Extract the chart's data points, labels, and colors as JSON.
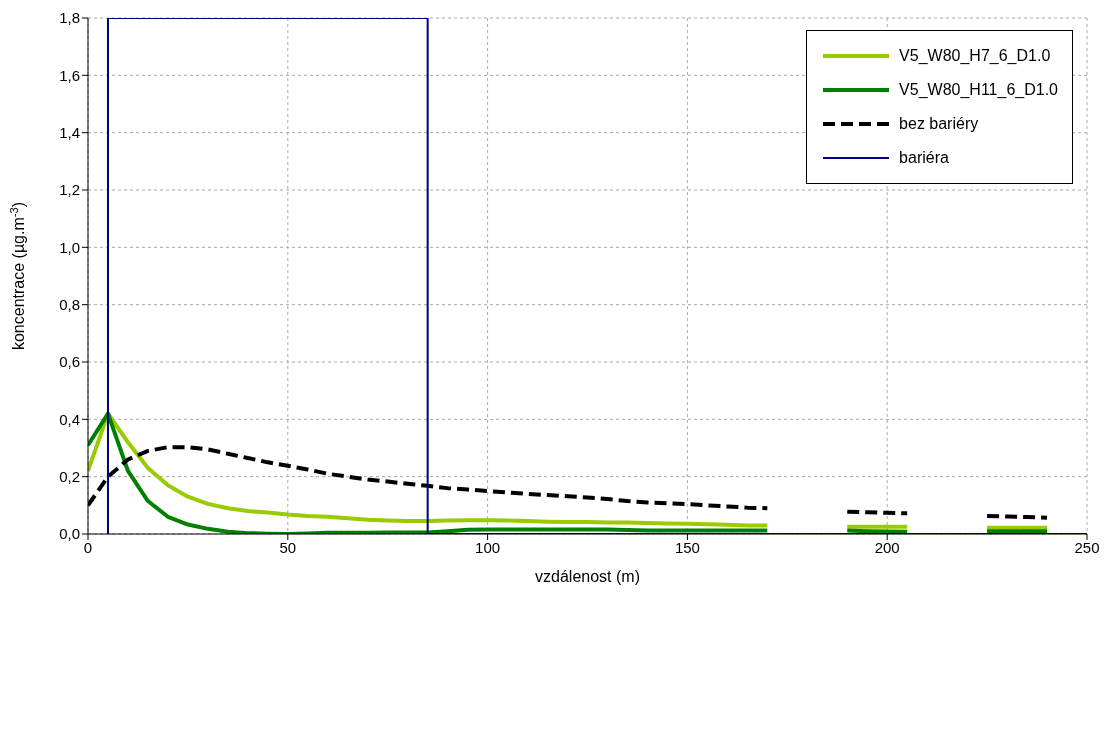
{
  "chart_data": {
    "type": "line",
    "xlabel": "vzdálenost  (m)",
    "ylabel": "koncentrace (µg.m$^{-3}$)",
    "xlim": [
      0,
      250
    ],
    "xticks": [
      0,
      50,
      100,
      150,
      200,
      250
    ],
    "ylim": [
      0,
      1.8
    ],
    "yticks": [
      {
        "value": 0,
        "label": "0,0"
      },
      {
        "value": 0.2,
        "label": "0,2"
      },
      {
        "value": 0.4,
        "label": "0,4"
      },
      {
        "value": 0.6,
        "label": "0,6"
      },
      {
        "value": 0.8,
        "label": "0,8"
      },
      {
        "value": 1,
        "label": "1,0"
      },
      {
        "value": 1.2,
        "label": "1,2"
      },
      {
        "value": 1.4,
        "label": "1,4"
      },
      {
        "value": 1.6,
        "label": "1,6"
      },
      {
        "value": 1.8,
        "label": "1,8"
      }
    ],
    "grid": true,
    "legend": "top right",
    "marker": "none",
    "series": [
      {
        "name": "V5_W80_H7_6_D1.0",
        "color": "#99cc00",
        "line_style": "solid",
        "x": [
          0,
          5,
          10,
          15,
          20,
          25,
          30,
          35,
          40,
          45,
          50,
          55,
          60,
          65,
          70,
          75,
          80,
          85,
          90,
          95,
          100,
          105,
          110,
          115,
          120,
          125,
          130,
          135,
          140,
          145,
          150,
          155,
          160,
          165,
          170,
          175,
          190,
          195,
          200,
          205,
          210,
          225,
          230,
          235,
          240
        ],
        "values": [
          0.22,
          0.42,
          0.32,
          0.23,
          0.17,
          0.13,
          0.105,
          0.09,
          0.08,
          0.075,
          0.068,
          0.063,
          0.06,
          0.055,
          0.05,
          0.047,
          0.045,
          0.045,
          0.047,
          0.048,
          0.048,
          0.047,
          0.045,
          0.043,
          0.042,
          0.042,
          0.04,
          0.04,
          0.038,
          0.037,
          0.036,
          0.034,
          0.032,
          0.03,
          0.03,
          null,
          0.025,
          0.025,
          0.025,
          0.025,
          null,
          0.022,
          0.022,
          0.022,
          0.022
        ]
      },
      {
        "name": "V5_W80_H11_6_D1.0",
        "color": "#008000",
        "line_style": "solid",
        "x": [
          0,
          5,
          10,
          15,
          20,
          25,
          30,
          35,
          40,
          45,
          50,
          55,
          60,
          65,
          70,
          75,
          80,
          85,
          90,
          95,
          100,
          105,
          110,
          115,
          120,
          125,
          130,
          135,
          140,
          145,
          150,
          155,
          160,
          165,
          170,
          175,
          190,
          195,
          200,
          205,
          210,
          225,
          230,
          235,
          240
        ],
        "values": [
          0.31,
          0.42,
          0.22,
          0.115,
          0.06,
          0.033,
          0.018,
          0.008,
          0.003,
          0.001,
          0,
          0.002,
          0.004,
          0.004,
          0.004,
          0.005,
          0.005,
          0.005,
          0.01,
          0.015,
          0.016,
          0.016,
          0.016,
          0.016,
          0.016,
          0.016,
          0.016,
          0.014,
          0.012,
          0.012,
          0.012,
          0.012,
          0.012,
          0.012,
          0.012,
          null,
          0.012,
          0.01,
          0.009,
          0.008,
          null,
          0.01,
          0.01,
          0.01,
          0.01
        ]
      },
      {
        "name": "bez bariéry",
        "color": "#000000",
        "line_style": "dashed",
        "x": [
          0,
          5,
          10,
          15,
          20,
          25,
          30,
          35,
          40,
          45,
          50,
          55,
          60,
          65,
          70,
          75,
          80,
          85,
          90,
          95,
          100,
          105,
          110,
          115,
          120,
          125,
          130,
          135,
          140,
          145,
          150,
          155,
          160,
          165,
          170,
          175,
          190,
          195,
          200,
          205,
          210,
          225,
          230,
          235,
          240
        ],
        "values": [
          0.1,
          0.2,
          0.26,
          0.29,
          0.303,
          0.303,
          0.295,
          0.28,
          0.265,
          0.25,
          0.238,
          0.225,
          0.21,
          0.2,
          0.19,
          0.183,
          0.175,
          0.168,
          0.16,
          0.155,
          0.15,
          0.145,
          0.14,
          0.136,
          0.132,
          0.127,
          0.122,
          0.115,
          0.11,
          0.107,
          0.104,
          0.1,
          0.096,
          0.092,
          0.09,
          null,
          0.078,
          0.076,
          0.074,
          0.072,
          null,
          0.063,
          0.061,
          0.059,
          0.057
        ]
      },
      {
        "name": "bariéra",
        "color": "#000080",
        "line_style": "solid",
        "x": [
          5,
          5,
          85,
          85,
          250
        ],
        "values": [
          0,
          1.8,
          1.8,
          0,
          0
        ]
      }
    ]
  }
}
